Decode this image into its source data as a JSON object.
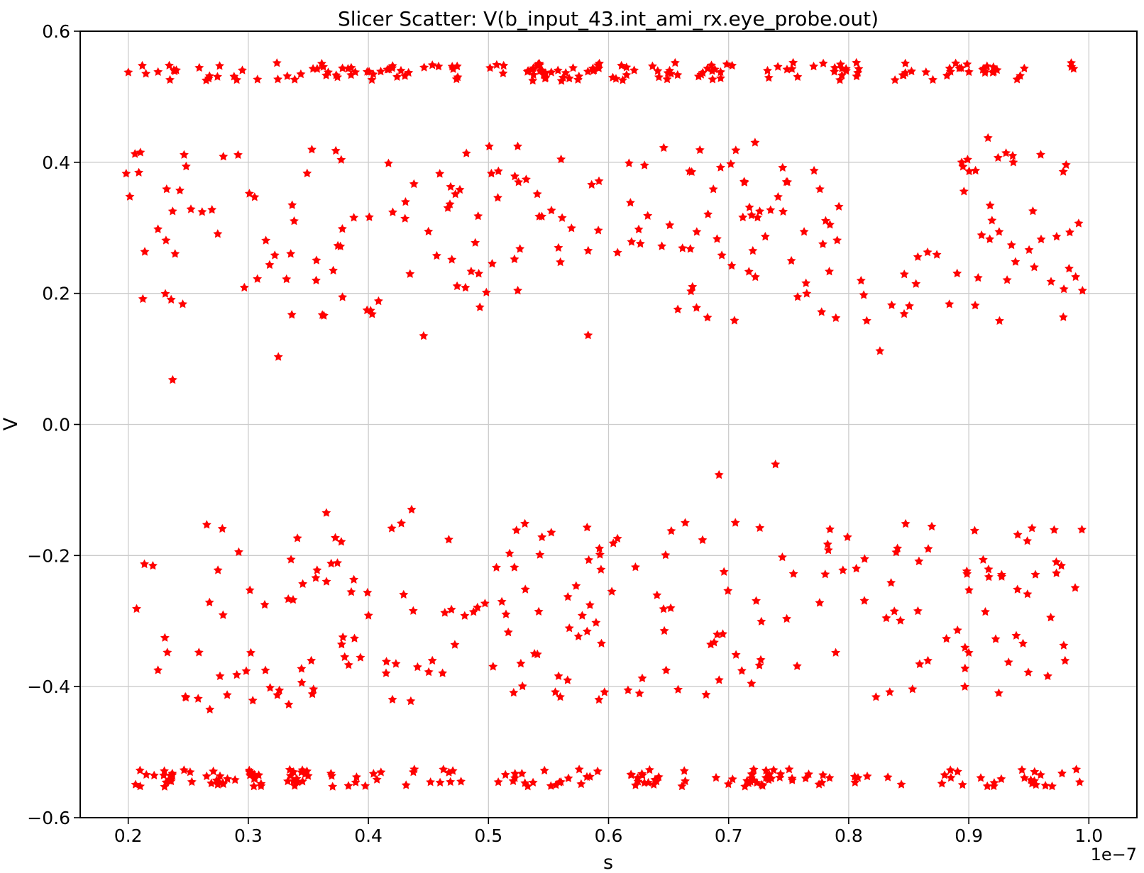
{
  "chart_data": {
    "type": "scatter",
    "title": "Slicer Scatter: V(b_input_43.int_ami_rx.eye_probe.out)",
    "xlabel": "s",
    "ylabel": "V",
    "x_offset_text": "1e−7",
    "xlim": [
      0.16,
      1.04
    ],
    "ylim": [
      -0.6,
      0.6
    ],
    "xticks": [
      0.2,
      0.3,
      0.4,
      0.5,
      0.6,
      0.7,
      0.8,
      0.9,
      1.0
    ],
    "xtick_labels": [
      "0.2",
      "0.3",
      "0.4",
      "0.5",
      "0.6",
      "0.7",
      "0.8",
      "0.9",
      "1.0"
    ],
    "yticks": [
      -0.6,
      -0.4,
      -0.2,
      0.0,
      0.2,
      0.4,
      0.6
    ],
    "ytick_labels": [
      "−0.6",
      "−0.4",
      "−0.2",
      "0.0",
      "0.2",
      "0.4",
      "0.6"
    ],
    "grid": true,
    "grid_color": "#cccccc",
    "axis_color": "#000000",
    "background_color": "#ffffff",
    "marker": {
      "shape": "star",
      "color": "#ff0000",
      "outer_radius_px": 6.8,
      "inner_ratio": 0.5
    },
    "scatter": {
      "x_range": [
        0.197,
        0.998
      ],
      "bands": [
        {
          "name": "high-rail",
          "y_range": [
            0.524,
            0.552
          ],
          "count": 175,
          "clustered": true
        },
        {
          "name": "high-cloud",
          "y_range": [
            0.158,
            0.425
          ],
          "count": 215,
          "clustered": false
        },
        {
          "name": "low-cloud",
          "y_range": [
            -0.428,
            -0.15
          ],
          "count": 215,
          "clustered": false
        },
        {
          "name": "low-rail",
          "y_range": [
            -0.553,
            -0.526
          ],
          "count": 175,
          "clustered": true
        }
      ],
      "outliers": [
        [
          0.237,
          0.068
        ],
        [
          0.325,
          0.103
        ],
        [
          0.446,
          0.135
        ],
        [
          0.583,
          0.136
        ],
        [
          0.826,
          0.112
        ],
        [
          0.722,
          0.43
        ],
        [
          0.916,
          0.437
        ],
        [
          0.931,
          0.414
        ],
        [
          0.899,
          0.404
        ],
        [
          0.692,
          -0.077
        ],
        [
          0.739,
          -0.061
        ],
        [
          0.726,
          -0.158
        ],
        [
          0.799,
          -0.172
        ],
        [
          0.365,
          -0.135
        ],
        [
          0.436,
          -0.13
        ],
        [
          0.268,
          -0.435
        ],
        [
          0.592,
          -0.42
        ],
        [
          0.925,
          -0.41
        ]
      ]
    }
  }
}
